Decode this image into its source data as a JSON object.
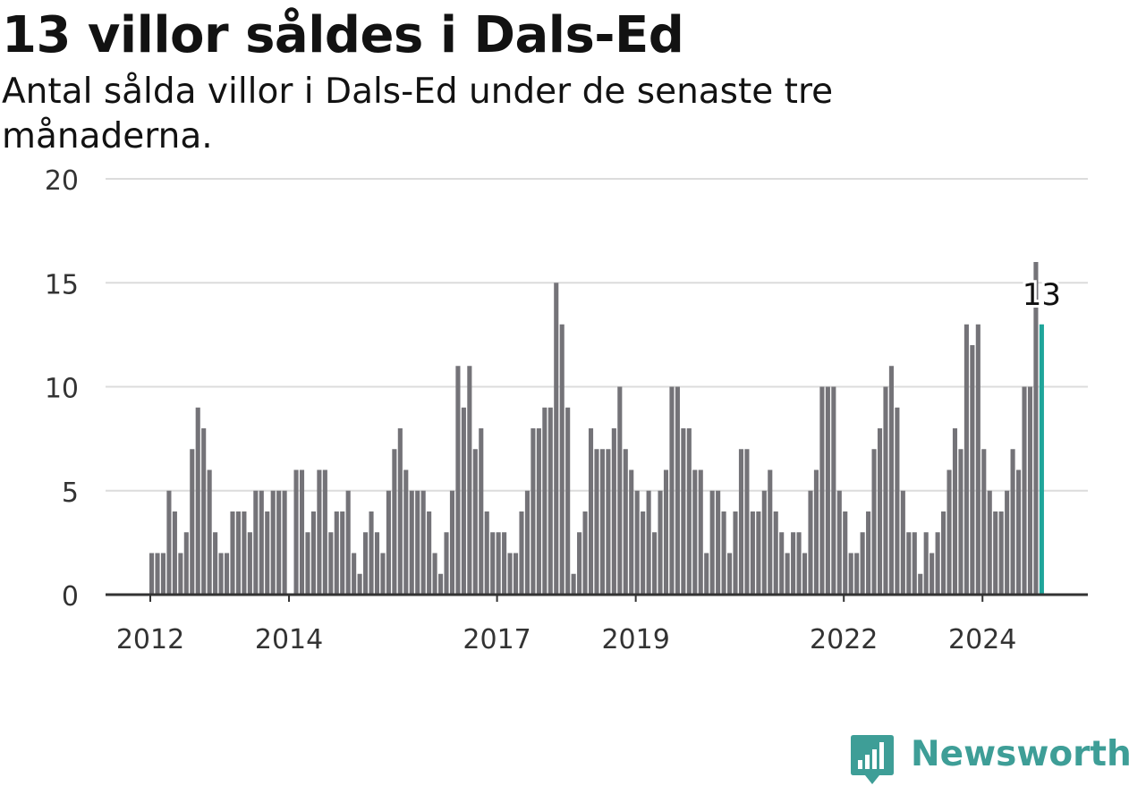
{
  "header": {
    "title": "13 villor såldes i Dals-Ed",
    "subtitle": "Antal sålda villor i Dals-Ed under de senaste tre månaderna."
  },
  "brand": {
    "name": "Newsworthy",
    "color": "#3e9e97"
  },
  "colors": {
    "bar": "#747378",
    "highlight": "#1fa59a",
    "grid": "#dcdcdc",
    "axis": "#333333"
  },
  "chart_data": {
    "type": "bar",
    "title": "13 villor såldes i Dals-Ed",
    "subtitle": "Antal sålda villor i Dals-Ed under de senaste tre månaderna.",
    "xlabel": "",
    "ylabel": "",
    "ylim": [
      0,
      20
    ],
    "yticks": [
      "0",
      "5",
      "10",
      "15",
      "20"
    ],
    "xticks": [
      "2012",
      "2014",
      "2017",
      "2019",
      "2022",
      "2024"
    ],
    "xtick_positions": [
      0,
      24,
      60,
      84,
      120,
      144
    ],
    "grid": true,
    "series": [
      {
        "values": [
          2,
          2,
          2,
          5,
          4,
          2,
          3,
          7,
          9,
          8,
          6,
          3,
          2,
          2,
          4,
          4,
          4,
          3,
          5,
          5,
          4,
          5,
          5,
          5,
          0,
          6,
          6,
          3,
          4,
          6,
          6,
          3,
          4,
          4,
          5,
          2,
          1,
          3,
          4,
          3,
          2,
          5,
          7,
          8,
          6,
          5,
          5,
          5,
          4,
          2,
          1,
          3,
          5,
          11,
          9,
          11,
          7,
          8,
          4,
          3,
          3,
          3,
          2,
          2,
          4,
          5,
          8,
          8,
          9,
          9,
          15,
          13,
          9,
          1,
          3,
          4,
          8,
          7,
          7,
          7,
          8,
          10,
          7,
          6,
          5,
          4,
          5,
          3,
          5,
          6,
          10,
          10,
          8,
          8,
          6,
          6,
          2,
          5,
          5,
          4,
          2,
          4,
          7,
          7,
          4,
          4,
          5,
          6,
          4,
          3,
          2,
          3,
          3,
          2,
          5,
          6,
          10,
          10,
          10,
          5,
          4,
          2,
          2,
          3,
          4,
          7,
          8,
          10,
          11,
          9,
          5,
          3,
          3,
          1,
          3,
          2,
          3,
          4,
          6,
          8,
          7,
          13,
          12,
          13,
          7,
          5,
          4,
          4,
          5,
          7,
          6,
          10,
          10,
          16,
          13
        ]
      }
    ],
    "highlight": {
      "value": 13,
      "label": "13"
    }
  }
}
